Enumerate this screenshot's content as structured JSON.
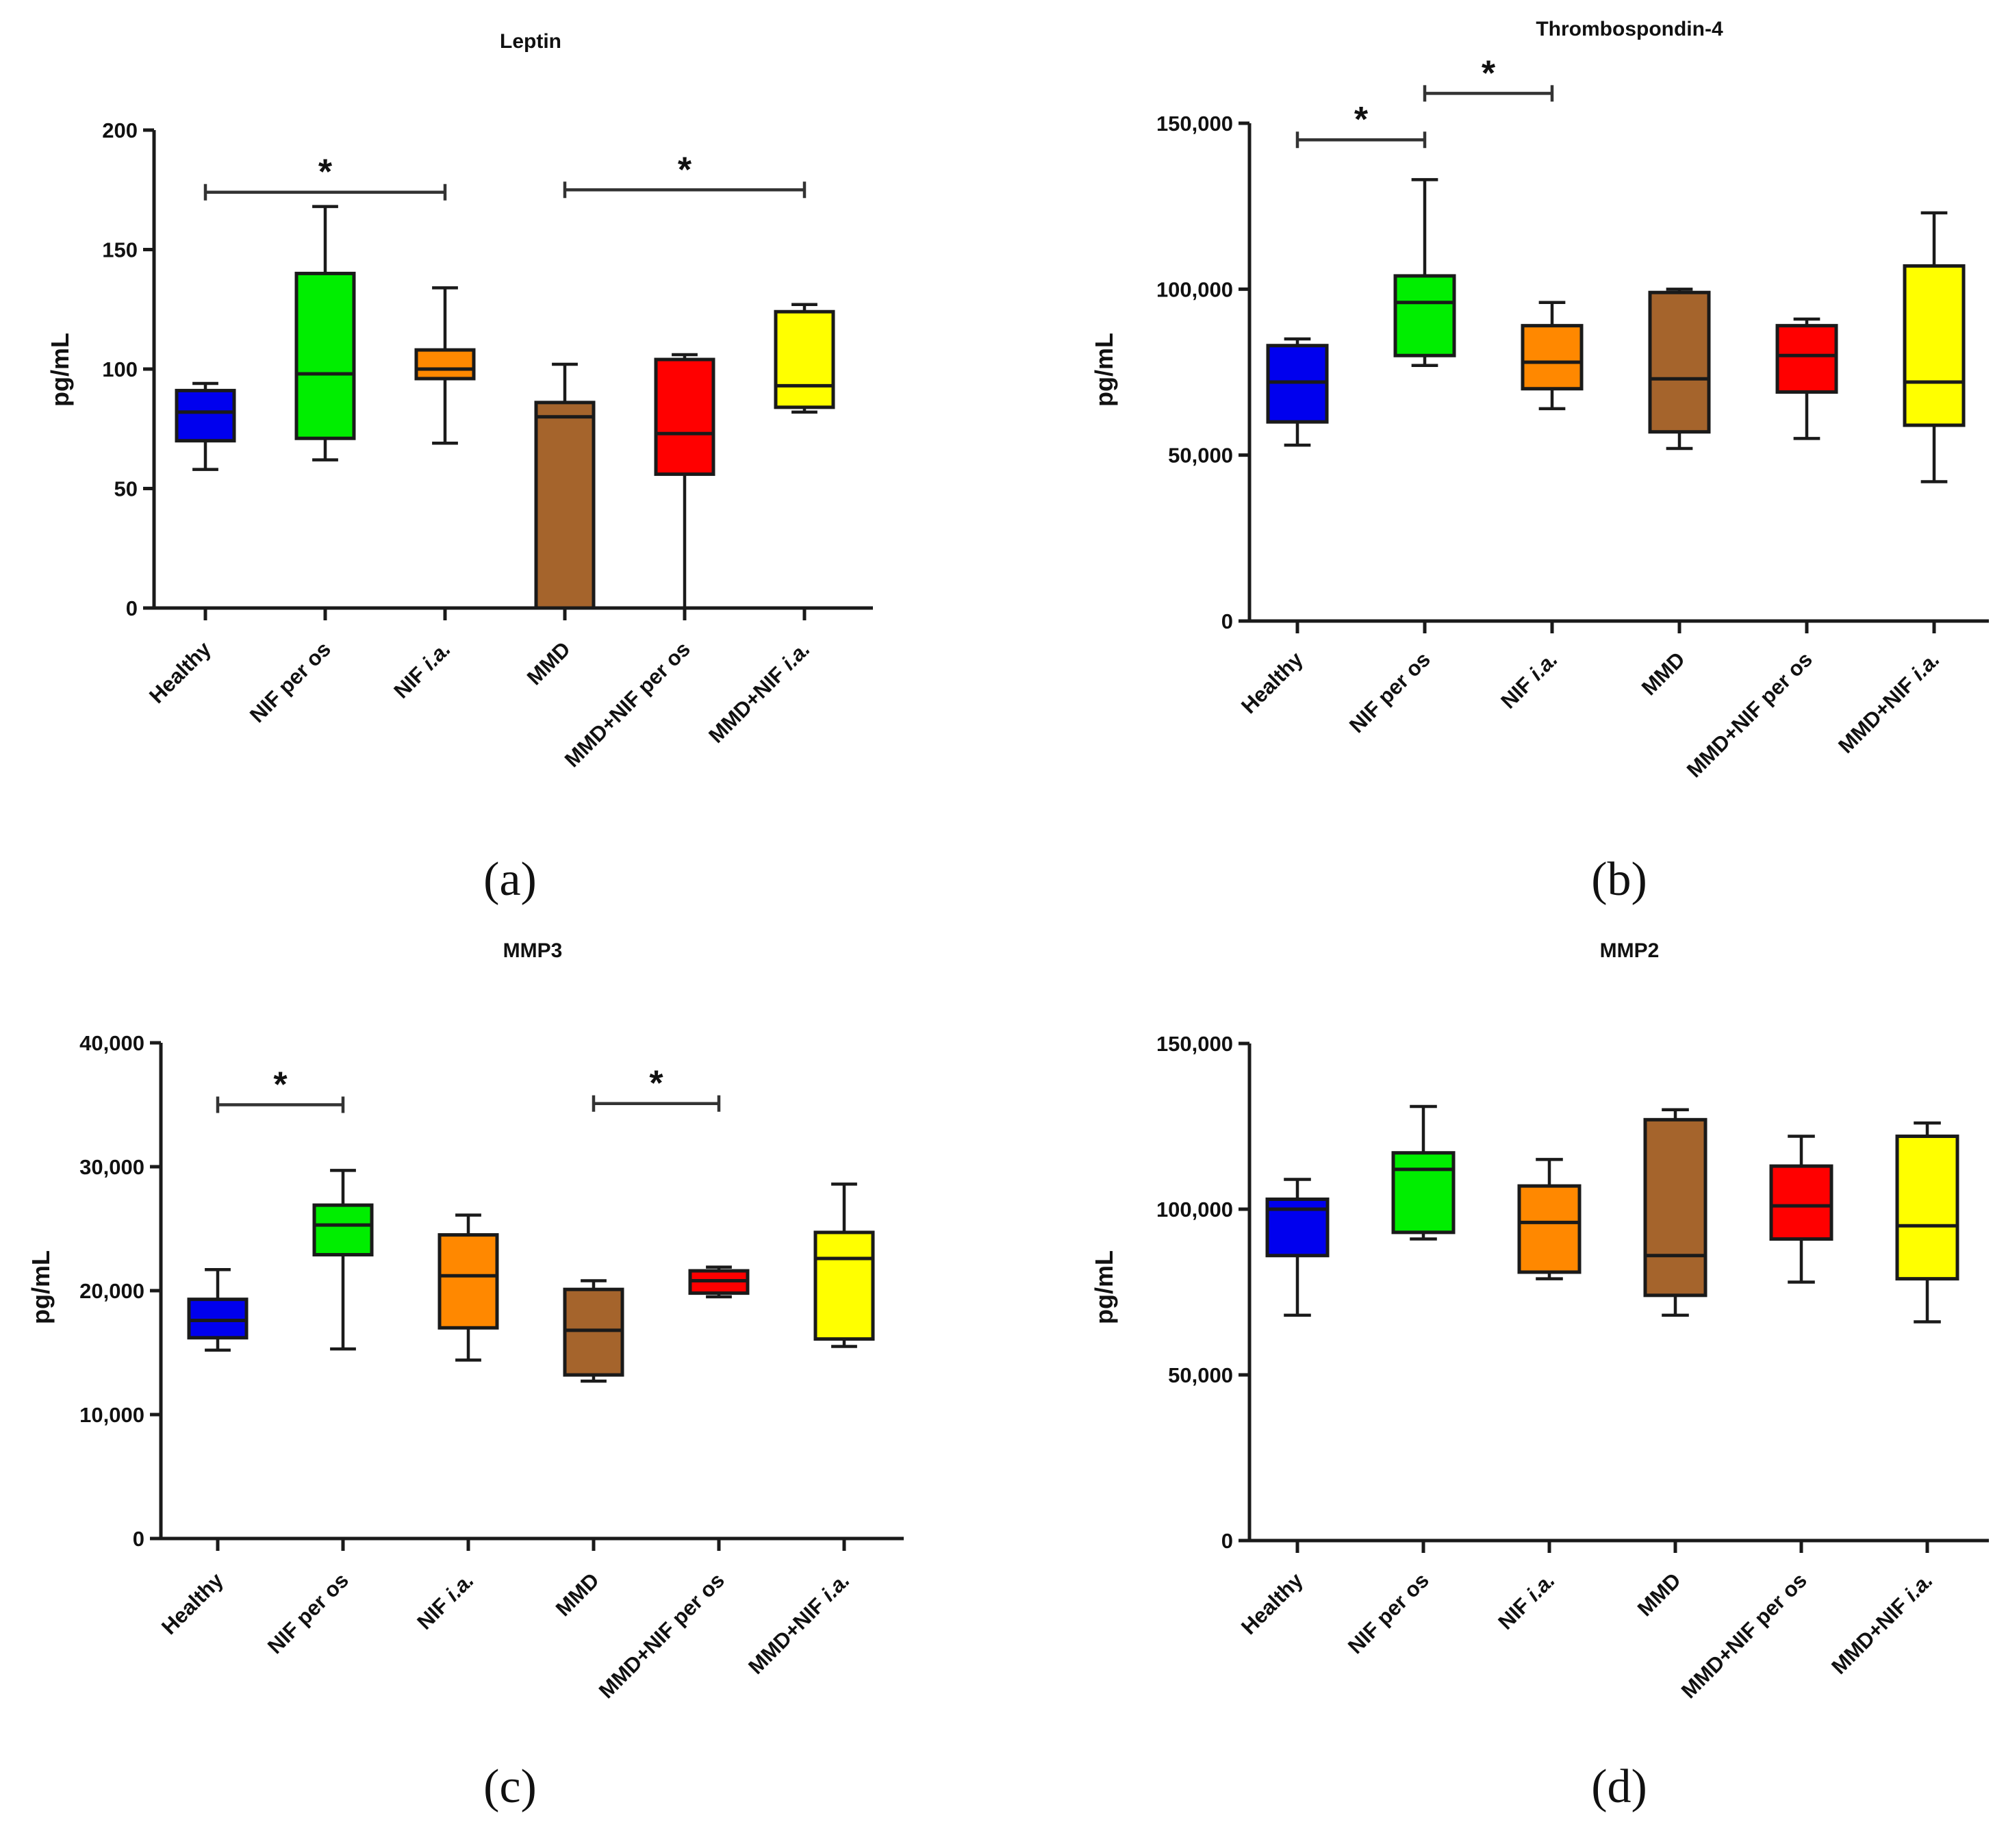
{
  "charts": [
    {
      "title": "Leptin",
      "caption": "(a)",
      "ylabel": "pg/mL",
      "yticks": [
        "0",
        "50",
        "100",
        "150",
        "200"
      ]
    },
    {
      "title": "Thrombospondin-4",
      "caption": "(b)",
      "ylabel": "pg/mL",
      "yticks": [
        "0",
        "50,000",
        "100,000",
        "150,000"
      ]
    },
    {
      "title": "MMP3",
      "caption": "(c)",
      "ylabel": "pg/mL",
      "yticks": [
        "0",
        "10,000",
        "20,000",
        "30,000",
        "40,000"
      ]
    },
    {
      "title": "MMP2",
      "caption": "(d)",
      "ylabel": "pg/mL",
      "yticks": [
        "0",
        "50,000",
        "100,000",
        "150,000"
      ]
    }
  ],
  "categories": [
    {
      "pre": "Healthy",
      "it": ""
    },
    {
      "pre": "NIF per os",
      "it": ""
    },
    {
      "pre": "NIF ",
      "it": "i.a."
    },
    {
      "pre": "MMD",
      "it": ""
    },
    {
      "pre": "MMD+NIF per os",
      "it": ""
    },
    {
      "pre": "MMD+NIF ",
      "it": "i.a."
    }
  ],
  "colors": [
    "#0000ee",
    "#00ee00",
    "#ff8800",
    "#a5642c",
    "#ff0000",
    "#ffff00"
  ],
  "chart_data": [
    {
      "type": "box",
      "title": "Leptin",
      "ylabel": "pg/mL",
      "ylim": [
        0,
        200
      ],
      "categories": [
        "Healthy",
        "NIF per os",
        "NIF i.a.",
        "MMD",
        "MMD+NIF per os",
        "MMD+NIF i.a."
      ],
      "boxes": [
        {
          "min": 58,
          "q1": 70,
          "median": 82,
          "q3": 91,
          "max": 94
        },
        {
          "min": 62,
          "q1": 71,
          "median": 98,
          "q3": 140,
          "max": 168
        },
        {
          "min": 69,
          "q1": 96,
          "median": 100,
          "q3": 108,
          "max": 134
        },
        {
          "min": 0,
          "q1": 0,
          "median": 80,
          "q3": 86,
          "max": 102
        },
        {
          "min": 0,
          "q1": 56,
          "median": 73,
          "q3": 104,
          "max": 106
        },
        {
          "min": 82,
          "q1": 84,
          "median": 93,
          "q3": 124,
          "max": 127
        }
      ],
      "significance": [
        {
          "from": 0,
          "to": 2,
          "label": "*",
          "y": 174
        },
        {
          "from": 3,
          "to": 5,
          "label": "*",
          "y": 175
        }
      ]
    },
    {
      "type": "box",
      "title": "Thrombospondin-4",
      "ylabel": "pg/mL",
      "ylim": [
        0,
        150000
      ],
      "categories": [
        "Healthy",
        "NIF per os",
        "NIF i.a.",
        "MMD",
        "MMD+NIF per os",
        "MMD+NIF i.a."
      ],
      "boxes": [
        {
          "min": 53000,
          "q1": 60000,
          "median": 72000,
          "q3": 83000,
          "max": 85000
        },
        {
          "min": 77000,
          "q1": 80000,
          "median": 96000,
          "q3": 104000,
          "max": 133000
        },
        {
          "min": 64000,
          "q1": 70000,
          "median": 78000,
          "q3": 89000,
          "max": 96000
        },
        {
          "min": 52000,
          "q1": 57000,
          "median": 73000,
          "q3": 99000,
          "max": 100000
        },
        {
          "min": 55000,
          "q1": 69000,
          "median": 80000,
          "q3": 89000,
          "max": 91000
        },
        {
          "min": 42000,
          "q1": 59000,
          "median": 72000,
          "q3": 107000,
          "max": 123000
        }
      ],
      "significance": [
        {
          "from": 0,
          "to": 1,
          "label": "*",
          "y": 145000
        },
        {
          "from": 1,
          "to": 2,
          "label": "*",
          "y": 159000
        }
      ]
    },
    {
      "type": "box",
      "title": "MMP3",
      "ylabel": "pg/mL",
      "ylim": [
        0,
        40000
      ],
      "categories": [
        "Healthy",
        "NIF per os",
        "NIF i.a.",
        "MMD",
        "MMD+NIF per os",
        "MMD+NIF i.a."
      ],
      "boxes": [
        {
          "min": 15200,
          "q1": 16200,
          "median": 17600,
          "q3": 19300,
          "max": 21700
        },
        {
          "min": 15300,
          "q1": 22900,
          "median": 25300,
          "q3": 26900,
          "max": 29700
        },
        {
          "min": 14400,
          "q1": 17000,
          "median": 21200,
          "q3": 24500,
          "max": 26100
        },
        {
          "min": 12700,
          "q1": 13200,
          "median": 16800,
          "q3": 20100,
          "max": 20800
        },
        {
          "min": 19500,
          "q1": 19800,
          "median": 20800,
          "q3": 21600,
          "max": 21900
        },
        {
          "min": 15500,
          "q1": 16100,
          "median": 22600,
          "q3": 24700,
          "max": 28600
        }
      ],
      "significance": [
        {
          "from": 0,
          "to": 1,
          "label": "*",
          "y": 35000
        },
        {
          "from": 3,
          "to": 4,
          "label": "*",
          "y": 35100
        }
      ]
    },
    {
      "type": "box",
      "title": "MMP2",
      "ylabel": "pg/mL",
      "ylim": [
        0,
        150000
      ],
      "categories": [
        "Healthy",
        "NIF per os",
        "NIF i.a.",
        "MMD",
        "MMD+NIF per os",
        "MMD+NIF i.a."
      ],
      "boxes": [
        {
          "min": 68000,
          "q1": 86000,
          "median": 100000,
          "q3": 103000,
          "max": 109000
        },
        {
          "min": 91000,
          "q1": 93000,
          "median": 112000,
          "q3": 117000,
          "max": 131000
        },
        {
          "min": 79000,
          "q1": 81000,
          "median": 96000,
          "q3": 107000,
          "max": 115000
        },
        {
          "min": 68000,
          "q1": 74000,
          "median": 86000,
          "q3": 127000,
          "max": 130000
        },
        {
          "min": 78000,
          "q1": 91000,
          "median": 101000,
          "q3": 113000,
          "max": 122000
        },
        {
          "min": 66000,
          "q1": 79000,
          "median": 95000,
          "q3": 122000,
          "max": 126000
        }
      ],
      "significance": []
    }
  ]
}
